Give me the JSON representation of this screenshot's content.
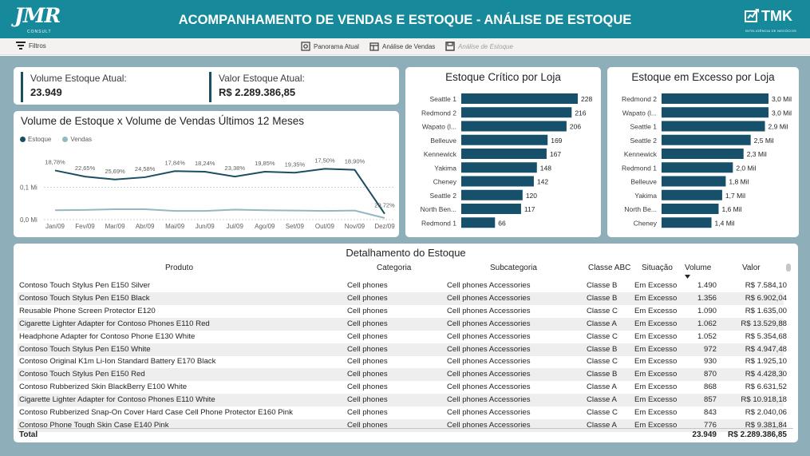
{
  "header": {
    "title": "ACOMPANHAMENTO DE VENDAS E ESTOQUE - ANÁLISE DE ESTOQUE",
    "logo_left": "JMR",
    "logo_left_sub": "CONSULT",
    "logo_right": "TMK",
    "logo_right_sub": "INTELIGÊNCIA DE NEGÓCIOS"
  },
  "toolbar": {
    "filters_label": "Filtros",
    "nav": [
      {
        "label": "Panorama Atual",
        "icon": "overview-icon"
      },
      {
        "label": "Análise de Vendas",
        "icon": "sales-icon"
      },
      {
        "label": "Análise de Estoque",
        "icon": "stock-icon"
      }
    ]
  },
  "kpis": [
    {
      "label": "Volume Estoque Atual:",
      "value": "23.949"
    },
    {
      "label": "Valor Estoque Atual:",
      "value": "R$ 2.289.386,85"
    }
  ],
  "line_chart": {
    "title": "Volume de Estoque x Volume de Vendas Últimos 12 Meses",
    "legend": [
      "Estoque",
      "Vendas"
    ],
    "y_ticks": [
      "0,1 Mi",
      "0,0 Mi"
    ],
    "colors": {
      "estoque": "#1a4e63",
      "vendas": "#93b8c3"
    }
  },
  "critical_chart": {
    "title": "Estoque Crítico por Loja",
    "bar_color": "#17506a"
  },
  "excess_chart": {
    "title": "Estoque em Excesso por Loja",
    "bar_color": "#17506a"
  },
  "chart_data": [
    {
      "type": "line",
      "title": "Volume de Estoque x Volume de Vendas Últimos 12 Meses",
      "x": [
        "Jan/09",
        "Fev/09",
        "Mar/09",
        "Abr/09",
        "Mai/09",
        "Jun/09",
        "Jul/09",
        "Ago/09",
        "Set/09",
        "Out/09",
        "Nov/09",
        "Dez/09"
      ],
      "series": [
        {
          "name": "Estoque",
          "values": [
            0.152,
            0.133,
            0.124,
            0.131,
            0.15,
            0.148,
            0.133,
            0.148,
            0.145,
            0.157,
            0.154,
            0.018
          ]
        },
        {
          "name": "Vendas",
          "values": [
            0.029,
            0.03,
            0.032,
            0.032,
            0.027,
            0.027,
            0.031,
            0.029,
            0.028,
            0.027,
            0.028,
            0.005
          ]
        }
      ],
      "data_labels": [
        "18,78%",
        "22,65%",
        "25,69%",
        "24,58%",
        "17,84%",
        "18,24%",
        "23,38%",
        "19,85%",
        "19,35%",
        "17,50%",
        "18,90%",
        "29,72%"
      ],
      "ylim": [
        0,
        0.2
      ],
      "y_ticks": [
        "0,0 Mi",
        "0,1 Mi"
      ],
      "legend": "top-left",
      "grid": true
    },
    {
      "type": "bar",
      "orientation": "horizontal",
      "title": "Estoque Crítico por Loja",
      "categories": [
        "Seattle 1",
        "Redmond 2",
        "Wapato (l...",
        "Belleuve",
        "Kennewick",
        "Yakima",
        "Cheney",
        "Seattle 2",
        "North Ben...",
        "Redmond 1"
      ],
      "values": [
        228,
        216,
        206,
        169,
        167,
        148,
        142,
        120,
        117,
        66
      ],
      "labels": [
        "228",
        "216",
        "206",
        "169",
        "167",
        "148",
        "142",
        "120",
        "117",
        "66"
      ],
      "xlim": [
        0,
        228
      ]
    },
    {
      "type": "bar",
      "orientation": "horizontal",
      "title": "Estoque em Excesso por Loja",
      "categories": [
        "Redmond 2",
        "Wapato (l...",
        "Seattle 1",
        "Seattle 2",
        "Kennewick",
        "Redmond 1",
        "Belleuve",
        "Yakima",
        "North Be...",
        "Cheney"
      ],
      "values": [
        3.0,
        3.0,
        2.9,
        2.5,
        2.3,
        2.0,
        1.8,
        1.7,
        1.6,
        1.4
      ],
      "labels": [
        "3,0 Mil",
        "3,0 Mil",
        "2,9 Mil",
        "2,5 Mil",
        "2,3 Mil",
        "2,0 Mil",
        "1,8 Mil",
        "1,7 Mil",
        "1,6 Mil",
        "1,4 Mil"
      ],
      "xlim": [
        0,
        3.0
      ]
    }
  ],
  "table": {
    "title": "Detalhamento do Estoque",
    "columns": [
      "Produto",
      "Categoria",
      "Subcategoria",
      "Classe ABC",
      "Situação",
      "Volume",
      "Valor"
    ],
    "rows": [
      [
        "Contoso Touch Stylus Pen E150 Silver",
        "Cell phones",
        "Cell phones Accessories",
        "Classe B",
        "Em Excesso",
        "1.490",
        "R$ 7.584,10"
      ],
      [
        "Contoso Touch Stylus Pen E150 Black",
        "Cell phones",
        "Cell phones Accessories",
        "Classe B",
        "Em Excesso",
        "1.356",
        "R$ 6.902,04"
      ],
      [
        "Reusable Phone Screen Protector E120",
        "Cell phones",
        "Cell phones Accessories",
        "Classe C",
        "Em Excesso",
        "1.090",
        "R$ 1.635,00"
      ],
      [
        "Cigarette Lighter Adapter for Contoso Phones E110 Red",
        "Cell phones",
        "Cell phones Accessories",
        "Classe A",
        "Em Excesso",
        "1.062",
        "R$ 13.529,88"
      ],
      [
        "Headphone Adapter for Contoso Phone E130 White",
        "Cell phones",
        "Cell phones Accessories",
        "Classe C",
        "Em Excesso",
        "1.052",
        "R$ 5.354,68"
      ],
      [
        "Contoso Touch Stylus Pen E150 White",
        "Cell phones",
        "Cell phones Accessories",
        "Classe B",
        "Em Excesso",
        "972",
        "R$ 4.947,48"
      ],
      [
        "Contoso Original K1m Li-Ion Standard Battery E170 Black",
        "Cell phones",
        "Cell phones Accessories",
        "Classe C",
        "Em Excesso",
        "930",
        "R$ 1.925,10"
      ],
      [
        "Contoso Touch Stylus Pen E150 Red",
        "Cell phones",
        "Cell phones Accessories",
        "Classe B",
        "Em Excesso",
        "870",
        "R$ 4.428,30"
      ],
      [
        "Contoso Rubberized Skin BlackBerry E100 White",
        "Cell phones",
        "Cell phones Accessories",
        "Classe A",
        "Em Excesso",
        "868",
        "R$ 6.631,52"
      ],
      [
        "Cigarette Lighter Adapter for Contoso Phones E110 White",
        "Cell phones",
        "Cell phones Accessories",
        "Classe A",
        "Em Excesso",
        "857",
        "R$ 10.918,18"
      ],
      [
        "Contoso Rubberized Snap-On Cover Hard Case Cell Phone Protector E160 Pink",
        "Cell phones",
        "Cell phones Accessories",
        "Classe C",
        "Em Excesso",
        "843",
        "R$ 2.040,06"
      ],
      [
        "Contoso Phone Tough Skin Case E140 Pink",
        "Cell phones",
        "Cell phones Accessories",
        "Classe A",
        "Em Excesso",
        "776",
        "R$ 9.381,84"
      ]
    ],
    "total": {
      "label": "Total",
      "volume": "23.949",
      "valor": "R$ 2.289.386,85"
    }
  }
}
